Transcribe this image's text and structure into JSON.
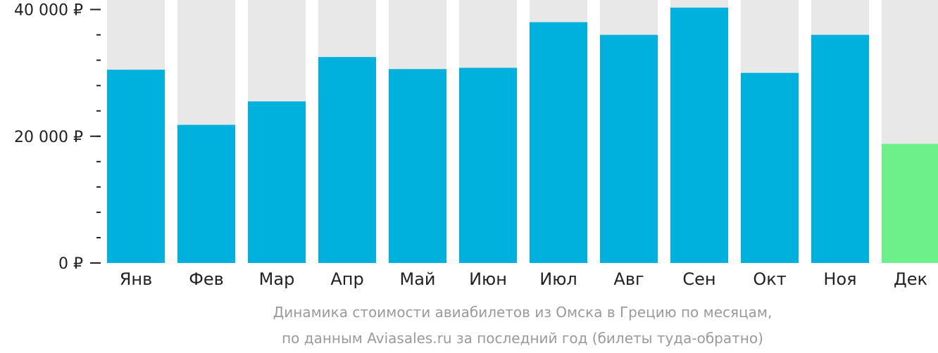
{
  "chart_data": {
    "type": "bar",
    "categories": [
      "Янв",
      "Фев",
      "Мар",
      "Апр",
      "Май",
      "Июн",
      "Июл",
      "Авг",
      "Сен",
      "Окт",
      "Ноя",
      "Дек"
    ],
    "values": [
      30500,
      21800,
      25500,
      32500,
      30600,
      30800,
      38000,
      36000,
      40300,
      30000,
      36000,
      18800
    ],
    "ylim": [
      0,
      41500
    ],
    "y_ticks": [
      {
        "value": 0,
        "label": "0 ₽"
      },
      {
        "value": 20000,
        "label": "20 000 ₽"
      },
      {
        "value": 40000,
        "label": "40 000 ₽"
      }
    ],
    "y_minor_step": 4000,
    "highlight_index": 11,
    "caption_line1": "Динамика стоимости авиабилетов из Омска в Грецию по месяцам,",
    "caption_line2": "по данным Aviasales.ru за последний год (билеты туда-обратно)",
    "colors": {
      "bar": "#00b1dd",
      "bar_highlight": "#6df08a",
      "background_column": "#e8e8e8",
      "axis": "#222222",
      "caption": "#9a9a9a"
    }
  }
}
